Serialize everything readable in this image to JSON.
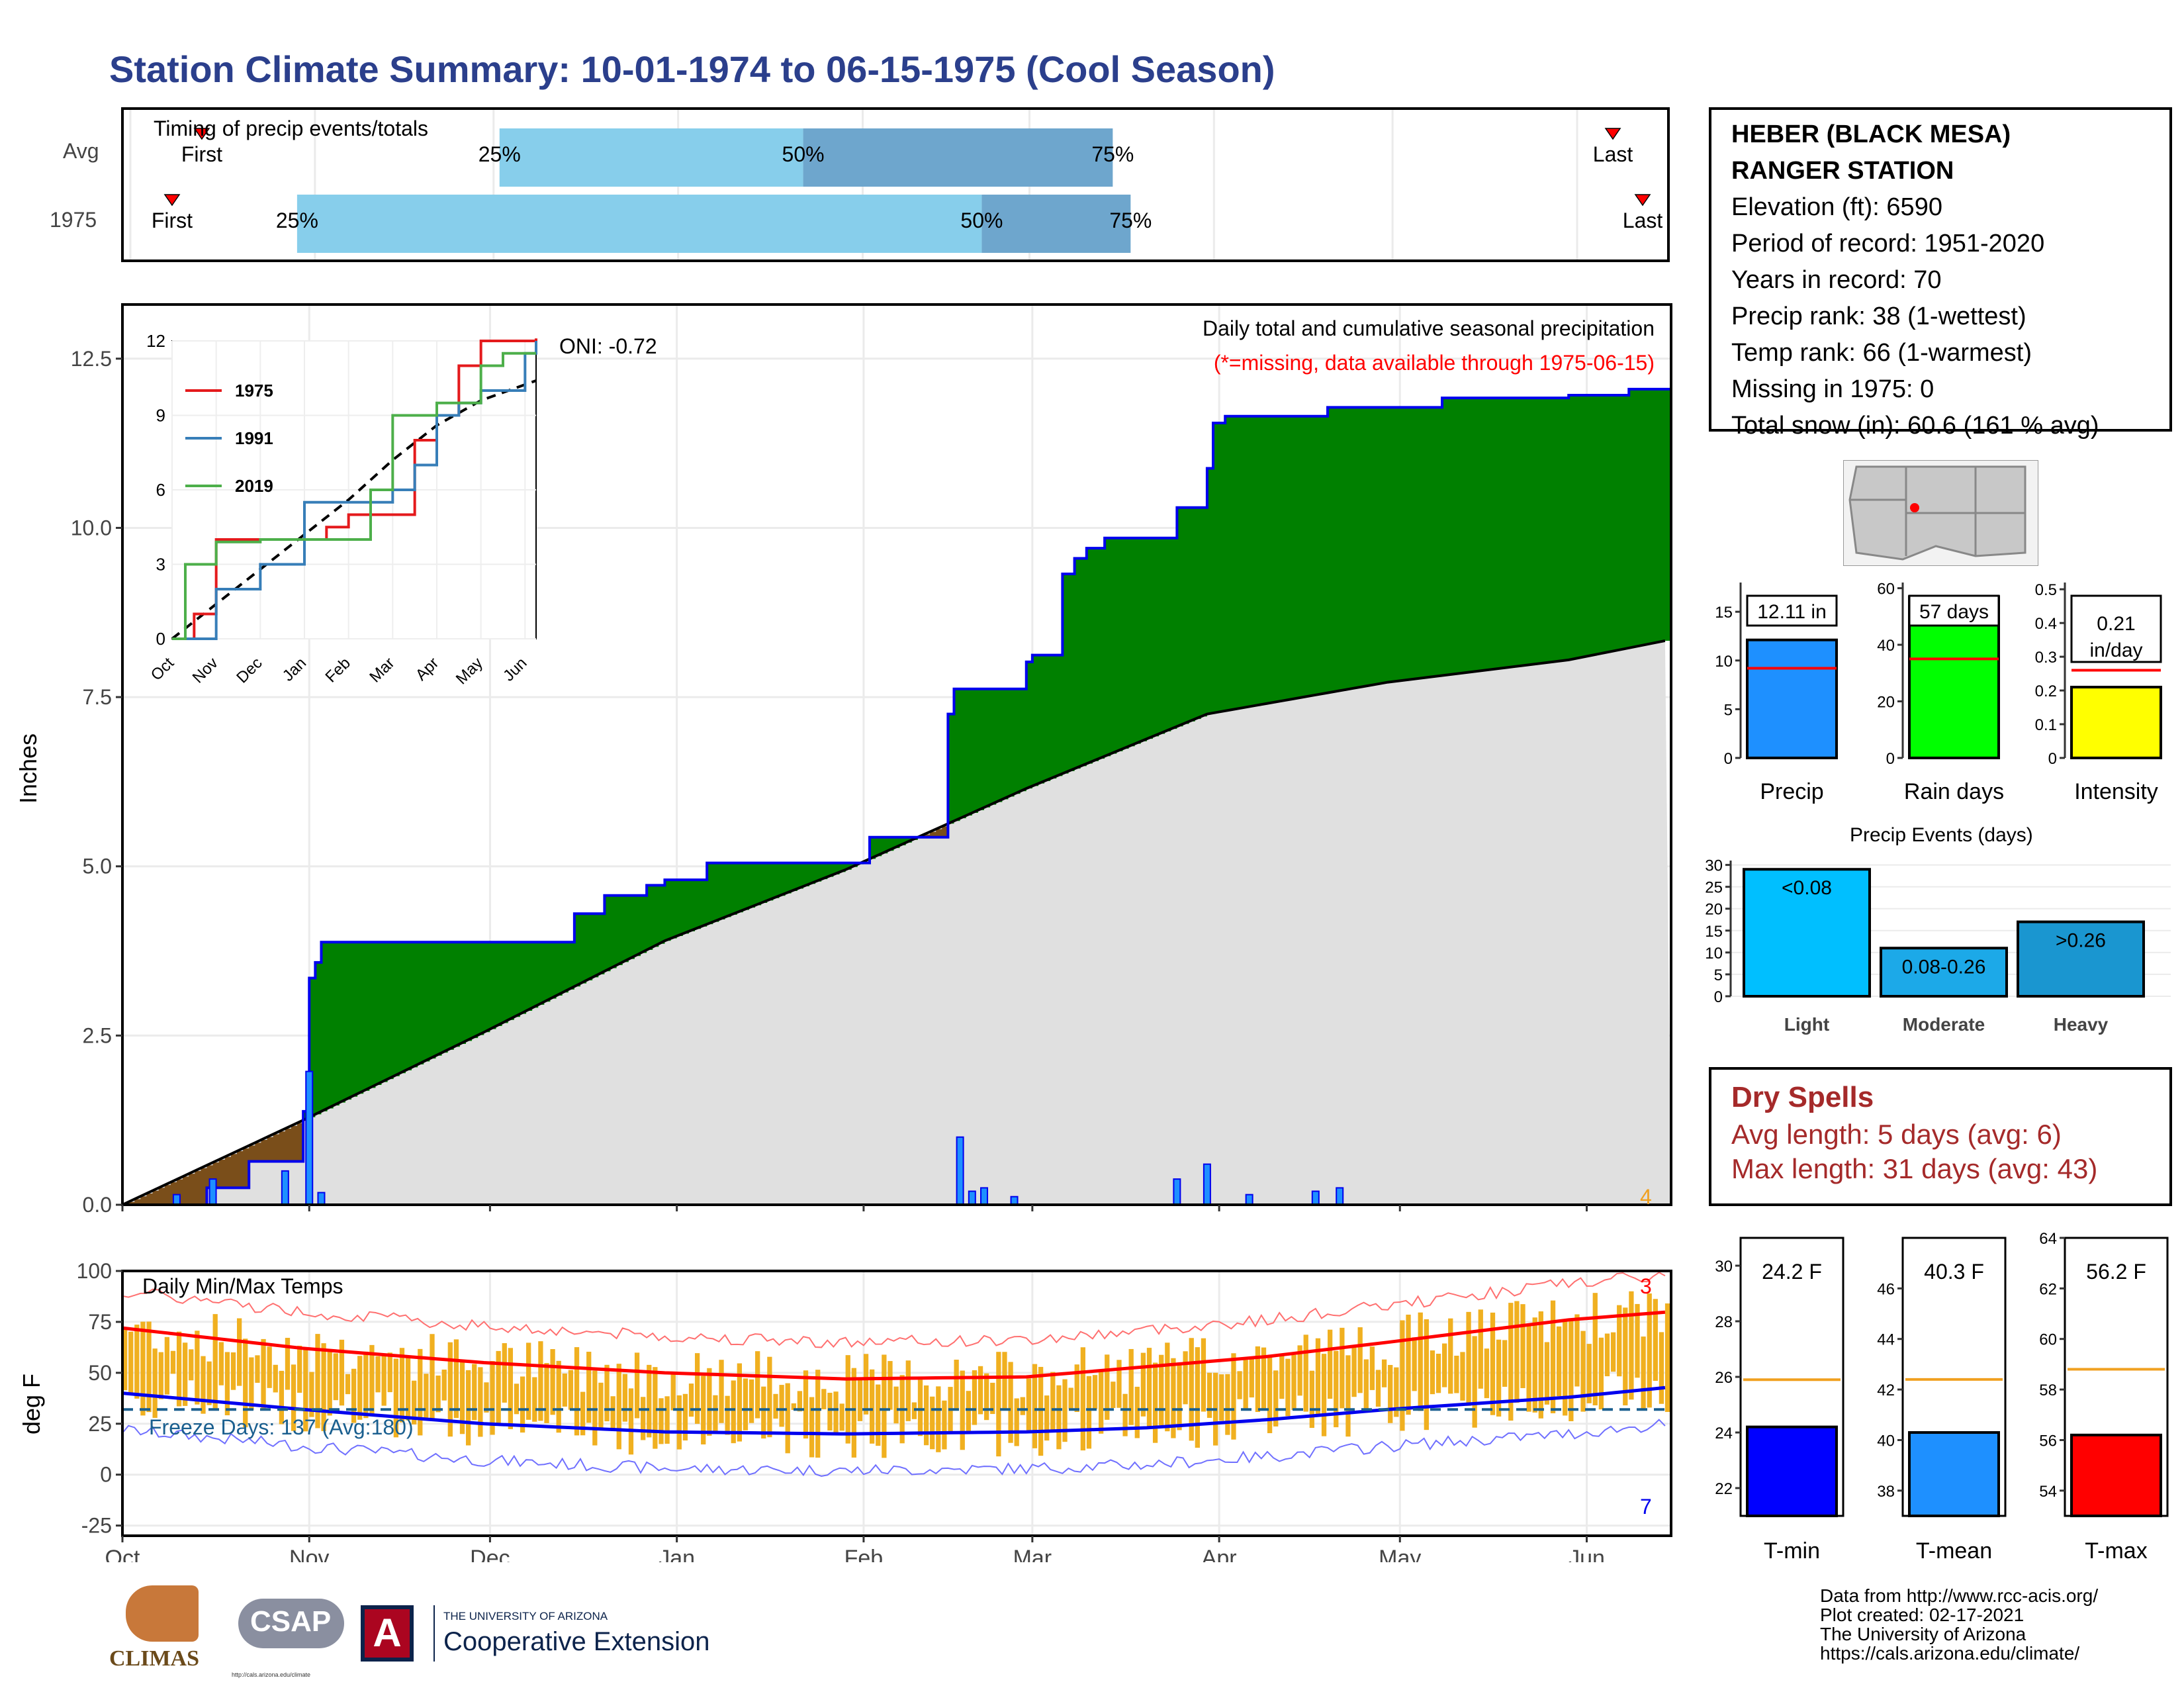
{
  "title": "Station Climate Summary: 10-01-1974 to 06-15-1975 (Cool Season)",
  "colors": {
    "title": "#2b3f8c",
    "green": "#008000",
    "gray": "#e0e0e0",
    "blue": "#0000ee",
    "brown": "#7a4e1a",
    "orange": "#f0b020",
    "red": "#ff0000"
  },
  "timing": {
    "label": "Timing of precip events/totals",
    "rows": [
      {
        "name": "Avg",
        "first_label": "First",
        "last_label": "Last",
        "q25": "25%",
        "q50": "50%",
        "q75": "75%"
      },
      {
        "name": "1975",
        "first_label": "First",
        "last_label": "Last",
        "q25": "25%",
        "q50": "50%",
        "q75": "75%"
      }
    ]
  },
  "station": {
    "name_line1": "HEBER (BLACK MESA)",
    "name_line2": "RANGER STATION",
    "lines": [
      "Elevation (ft): 6590",
      "Period of record: 1951-2020",
      "Years in record: 70",
      "Precip rank: 38 (1-wettest)",
      "Temp rank: 66 (1-warmest)",
      "Missing in 1975: 0",
      "Total snow (in): 60.6 (161 % avg)"
    ]
  },
  "precip_panel": {
    "ylabel": "Inches",
    "title": "Daily total and cumulative seasonal precipitation",
    "missing_note": "(*=missing, data available through 1975-06-15)",
    "oni": "ONI: -0.72",
    "corner_count": "4"
  },
  "temp_panel": {
    "ylabel": "deg F",
    "title": "Daily Min/Max Temps",
    "freeze": "Freeze Days: 137 (Avg:180)",
    "count_hi": "3",
    "count_lo": "7"
  },
  "month_labels": [
    "Oct",
    "Nov",
    "Dec",
    "Jan",
    "Feb",
    "Mar",
    "Apr",
    "May",
    "Jun"
  ],
  "summary_bars": [
    {
      "label": "Precip",
      "value_text": "12.11 in",
      "value": 12.11,
      "avg": 9.2,
      "ymax": 18,
      "ticks": [
        0,
        5,
        10,
        15
      ],
      "color": "#1e90ff"
    },
    {
      "label": "Rain days",
      "value_text": "57 days",
      "value": 57,
      "avg": 35,
      "ymax": 62,
      "ticks": [
        0,
        20,
        40,
        60
      ],
      "color": "#00ff00"
    },
    {
      "label": "Intensity",
      "value_text": "0.21 in/day",
      "value": 0.21,
      "avg": 0.26,
      "ymax": 0.52,
      "ticks": [
        0,
        0.1,
        0.2,
        0.3,
        0.4,
        0.5
      ],
      "color": "#ffff00"
    }
  ],
  "events": {
    "title": "Precip Events (days)",
    "bars": [
      {
        "name": "Light",
        "bar_label": "<0.08",
        "value": 29,
        "color": "#00bfff"
      },
      {
        "name": "Moderate",
        "bar_label": "0.08-0.26",
        "value": 11,
        "color": "#1ca9e8"
      },
      {
        "name": "Heavy",
        "bar_label": ">0.26",
        "value": 17,
        "color": "#1a96d0"
      }
    ],
    "ticks": [
      0,
      5,
      10,
      15,
      20,
      25,
      30
    ]
  },
  "dry_spells": {
    "title": "Dry Spells",
    "avg_line": "Avg length: 5 days (avg: 6)",
    "max_line": "Max length: 31 days (avg: 43)"
  },
  "temp_bars": [
    {
      "label": "T-min",
      "value_text": "24.2 F",
      "value": 24.2,
      "avg": 25.9,
      "ymin": 21,
      "ymax": 31,
      "ticks": [
        22,
        24,
        26,
        28,
        30
      ],
      "color": "#0000ff"
    },
    {
      "label": "T-mean",
      "value_text": "40.3 F",
      "value": 40.3,
      "avg": 42.4,
      "ymin": 37,
      "ymax": 48,
      "ticks": [
        38,
        40,
        42,
        44,
        46
      ],
      "color": "#1e90ff"
    },
    {
      "label": "T-max",
      "value_text": "56.2 F",
      "value": 56.2,
      "avg": 58.8,
      "ymin": 53,
      "ymax": 64,
      "ticks": [
        54,
        56,
        58,
        60,
        62,
        64
      ],
      "color": "#ff0000"
    }
  ],
  "footer": [
    "Data from http://www.rcc-acis.org/",
    "Plot created: 02-17-2021",
    "The University of Arizona",
    "https://cals.arizona.edu/climate/"
  ],
  "logos": {
    "climas": "CLIMAS",
    "csap": "CSAP",
    "csap_url": "http://cals.arizona.edu/climate",
    "ua_top": "THE UNIVERSITY OF ARIZONA",
    "ua_main": "Cooperative Extension"
  },
  "chart_data": [
    {
      "type": "line",
      "name": "cumulative precipitation",
      "ylim": [
        0,
        13.3
      ],
      "yticks": [
        "0.0",
        "2.5",
        "5.0",
        "7.5",
        "10.0",
        "12.5"
      ],
      "xlabel": "",
      "ylabel": "Inches",
      "observed_1975": {
        "day": [
          0,
          14,
          21,
          28,
          30,
          31,
          32,
          33,
          62,
          75,
          80,
          87,
          90,
          97,
          104,
          124,
          127,
          137,
          138,
          150,
          151,
          156,
          158,
          160,
          163,
          175,
          180,
          181,
          183,
          200,
          219,
          240,
          250,
          257
        ],
        "value": [
          0,
          0.25,
          0.64,
          0.64,
          1.38,
          3.35,
          3.58,
          3.88,
          3.88,
          4.3,
          4.57,
          4.72,
          4.8,
          5.05,
          5.05,
          5.43,
          5.43,
          7.25,
          7.62,
          8.02,
          8.12,
          9.32,
          9.55,
          9.7,
          9.85,
          10.3,
          10.88,
          11.55,
          11.65,
          11.78,
          11.92,
          11.96,
          12.05,
          12.11
        ]
      },
      "average": {
        "day": [
          0,
          30,
          60,
          90,
          120,
          150,
          180,
          210,
          240,
          257
        ],
        "value": [
          0,
          1.25,
          2.55,
          3.9,
          4.95,
          6.15,
          7.25,
          7.72,
          8.05,
          8.35
        ]
      },
      "daily_bars": [
        {
          "day": 9,
          "value": 0.15
        },
        {
          "day": 15,
          "value": 0.38
        },
        {
          "day": 27,
          "value": 0.5
        },
        {
          "day": 31,
          "value": 1.97
        },
        {
          "day": 33,
          "value": 0.18
        },
        {
          "day": 139,
          "value": 1.0
        },
        {
          "day": 141,
          "value": 0.2
        },
        {
          "day": 143,
          "value": 0.25
        },
        {
          "day": 148,
          "value": 0.12
        },
        {
          "day": 175,
          "value": 0.38
        },
        {
          "day": 180,
          "value": 0.6
        },
        {
          "day": 187,
          "value": 0.15
        },
        {
          "day": 198,
          "value": 0.2
        },
        {
          "day": 202,
          "value": 0.25
        }
      ]
    },
    {
      "type": "line",
      "name": "inset cumulative precip",
      "ylim": [
        0,
        12
      ],
      "yticks": [
        0,
        3,
        6,
        9,
        12
      ],
      "xticks": [
        "Oct",
        "Nov",
        "Dec",
        "Jan",
        "Feb",
        "Mar",
        "Apr",
        "May",
        "Jun"
      ],
      "series": [
        {
          "name": "1975",
          "color": "#e41a1c",
          "x": [
            0,
            0.5,
            1,
            2,
            3,
            3.5,
            4,
            5,
            5.5,
            6,
            6.5,
            7,
            8.25
          ],
          "y": [
            0,
            1,
            4,
            4,
            4,
            4.5,
            5,
            5,
            8,
            9,
            11,
            12,
            12.1
          ]
        },
        {
          "name": "1991",
          "color": "#377eb8",
          "x": [
            0,
            1,
            2,
            2.8,
            3,
            4,
            5,
            5.5,
            6,
            6.5,
            7,
            8,
            8.25
          ],
          "y": [
            0,
            2,
            3,
            3,
            5.5,
            5.5,
            6,
            7,
            9,
            9.5,
            10,
            11.5,
            12
          ]
        },
        {
          "name": "2019",
          "color": "#4daf4a",
          "x": [
            0,
            0.3,
            1,
            2,
            3,
            3.5,
            4,
            4.5,
            5,
            6,
            7,
            7.5,
            8.25
          ],
          "y": [
            0,
            3,
            3.9,
            4,
            4,
            4,
            4,
            6,
            9,
            9.5,
            11,
            11.5,
            11.5
          ]
        }
      ],
      "average": {
        "x": [
          0,
          1,
          2,
          3,
          4,
          5,
          6,
          7,
          8.25
        ],
        "y": [
          0,
          1.4,
          2.8,
          4.2,
          5.6,
          7.2,
          8.6,
          9.6,
          10.4
        ]
      }
    },
    {
      "type": "area",
      "name": "daily min/max temps",
      "ylim": [
        -30,
        100
      ],
      "yticks": [
        -25,
        0,
        25,
        50,
        75,
        100
      ],
      "ylabel": "deg F",
      "freeze_line": 32,
      "avg_max": {
        "day": [
          0,
          30,
          60,
          90,
          120,
          150,
          170,
          190,
          210,
          240,
          257
        ],
        "value": [
          72,
          62,
          55,
          50,
          47,
          48,
          53,
          58,
          65,
          76,
          80
        ]
      },
      "avg_min": {
        "day": [
          0,
          30,
          60,
          90,
          120,
          150,
          170,
          190,
          210,
          240,
          257
        ],
        "value": [
          40,
          32,
          25,
          21,
          20,
          21,
          23,
          27,
          32,
          38,
          43
        ]
      }
    }
  ]
}
